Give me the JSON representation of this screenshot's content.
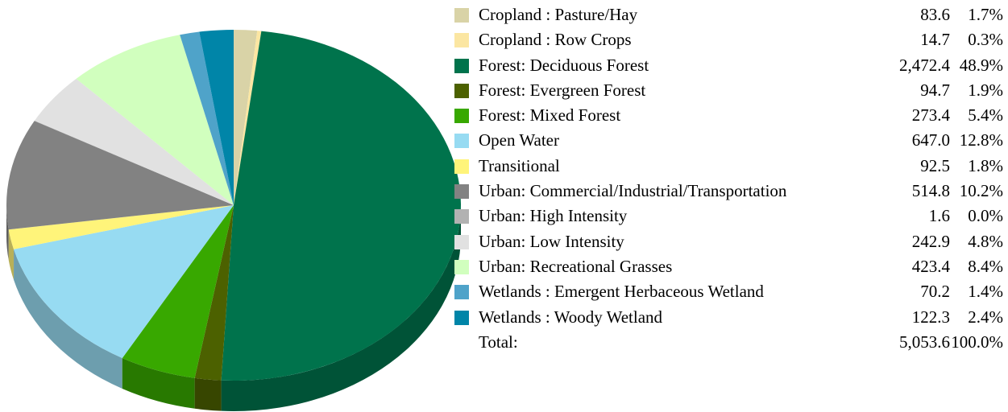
{
  "chart_data": {
    "type": "pie",
    "categories": [
      "Cropland : Pasture/Hay",
      "Cropland : Row Crops",
      "Forest: Deciduous Forest",
      "Forest: Evergreen Forest",
      "Forest: Mixed Forest",
      "Open Water",
      "Transitional",
      "Urban: Commercial/Industrial/Transportation",
      "Urban: High Intensity",
      "Urban: Low Intensity",
      "Urban: Recreational Grasses",
      "Wetlands : Emergent Herbaceous Wetland",
      "Wetlands : Woody Wetland"
    ],
    "values": [
      83.6,
      14.7,
      2472.4,
      94.7,
      273.4,
      647.0,
      92.5,
      514.8,
      1.6,
      242.9,
      423.4,
      70.2,
      122.3
    ],
    "value_labels": [
      "83.6",
      "14.7",
      "2,472.4",
      "94.7",
      "273.4",
      "647.0",
      "92.5",
      "514.8",
      "1.6",
      "242.9",
      "423.4",
      "70.2",
      "122.3"
    ],
    "percent_labels": [
      "1.7%",
      "0.3%",
      "48.9%",
      "1.9%",
      "5.4%",
      "12.8%",
      "1.8%",
      "10.2%",
      "0.0%",
      "4.8%",
      "8.4%",
      "1.4%",
      "2.4%"
    ],
    "colors": [
      "#d9d3a7",
      "#fbe6a2",
      "#00734c",
      "#4c6100",
      "#38a800",
      "#97dbf2",
      "#fff47a",
      "#828282",
      "#b2b2b2",
      "#e1e1e1",
      "#d1ffbe",
      "#4fa3c9",
      "#0085a8"
    ],
    "total_label": "Total:",
    "total_value": "5,053.6",
    "total_percent": "100.0%",
    "legend_position": "right",
    "style": "3d"
  }
}
